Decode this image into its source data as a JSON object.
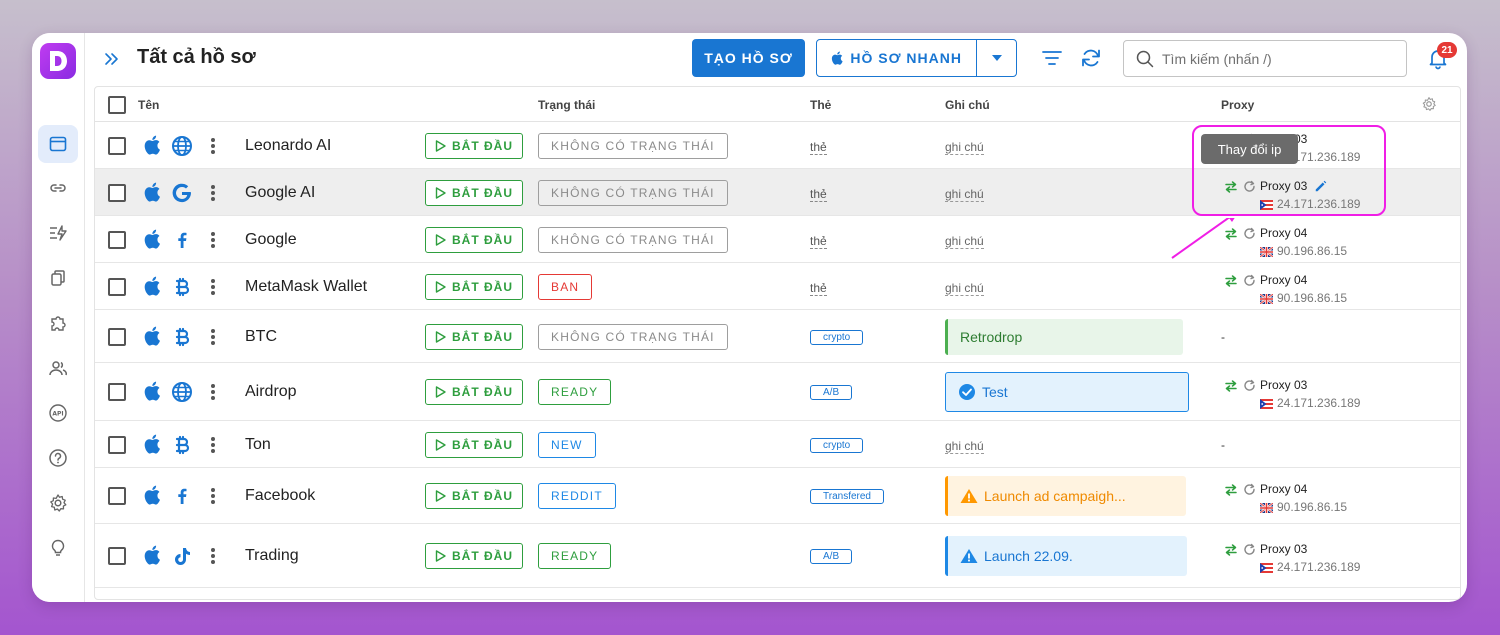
{
  "header": {
    "title": "Tất cả hồ sơ",
    "create_label": "TẠO HỒ SƠ",
    "quick_label": "HỒ SƠ NHANH",
    "search_placeholder": "Tìm kiếm (nhấn /)",
    "notification_count": "21"
  },
  "sidebar": {
    "items": [
      "browser-profiles",
      "links",
      "automation",
      "copy",
      "extensions",
      "team",
      "api",
      "help",
      "settings",
      "ideas"
    ]
  },
  "columns": {
    "name": "Tên",
    "status": "Trạng thái",
    "tag": "Thẻ",
    "note": "Ghi chú",
    "proxy": "Proxy"
  },
  "start_label": "BẮT ĐẦU",
  "tooltip": "Thay đổi ip",
  "colors": {
    "brand": "#1976d2",
    "start": "#2e9e3e",
    "highlight": "#f01ee6",
    "status_gray": "#9e9e9e",
    "status_red": "#e53935",
    "status_green": "#2e9e3e",
    "status_blue": "#1e88e5"
  },
  "rows": [
    {
      "name": "Leonardo AI",
      "site_icon": "globe-icon",
      "status": "KHÔNG CÓ TRẠNG THÁI",
      "status_color": "gray",
      "tag": "thẻ",
      "note": "ghi chú",
      "proxy_name": "Proxy 03",
      "proxy_ip": "24.171.236.189",
      "flag": "puerto-rico-flag"
    },
    {
      "name": "Google AI",
      "site_icon": "google-icon",
      "status": "KHÔNG CÓ TRẠNG THÁI",
      "status_color": "gray",
      "tag": "thẻ",
      "note": "ghi chú",
      "proxy_name": "Proxy 03",
      "proxy_ip": "24.171.236.189",
      "flag": "puerto-rico-flag"
    },
    {
      "name": "Google",
      "site_icon": "facebook-icon",
      "status": "KHÔNG CÓ TRẠNG THÁI",
      "status_color": "gray",
      "tag": "thẻ",
      "note": "ghi chú",
      "proxy_name": "Proxy 04",
      "proxy_ip": "90.196.86.15",
      "flag": "uk-flag"
    },
    {
      "name": "MetaMask Wallet",
      "site_icon": "bitcoin-icon",
      "status": "BAN",
      "status_color": "red",
      "tag": "thẻ",
      "note": "ghi chú",
      "proxy_name": "Proxy 04",
      "proxy_ip": "90.196.86.15",
      "flag": "uk-flag"
    },
    {
      "name": "BTC",
      "site_icon": "bitcoin-icon",
      "status": "KHÔNG CÓ TRẠNG THÁI",
      "status_color": "gray",
      "tag": "crypto",
      "note": "Retrodrop",
      "proxy_name": "-",
      "proxy_ip": "",
      "flag": ""
    },
    {
      "name": "Airdrop",
      "site_icon": "globe-icon",
      "status": "READY",
      "status_color": "green",
      "tag": "A/B",
      "note": "Test",
      "proxy_name": "Proxy 03",
      "proxy_ip": "24.171.236.189",
      "flag": "puerto-rico-flag"
    },
    {
      "name": "Ton",
      "site_icon": "bitcoin-icon",
      "status": "NEW",
      "status_color": "blue",
      "tag": "crypto",
      "note": "ghi chú",
      "proxy_name": "-",
      "proxy_ip": "",
      "flag": ""
    },
    {
      "name": "Facebook",
      "site_icon": "facebook-icon",
      "status": "REDDIT",
      "status_color": "blue",
      "tag": "Transfered",
      "note": "Launch ad campaigh...",
      "proxy_name": "Proxy 04",
      "proxy_ip": "90.196.86.15",
      "flag": "uk-flag"
    },
    {
      "name": "Trading",
      "site_icon": "tiktok-icon",
      "status": "READY",
      "status_color": "green",
      "tag": "A/B",
      "note": "Launch 22.09.",
      "proxy_name": "Proxy 03",
      "proxy_ip": "24.171.236.189",
      "flag": "puerto-rico-flag"
    }
  ]
}
